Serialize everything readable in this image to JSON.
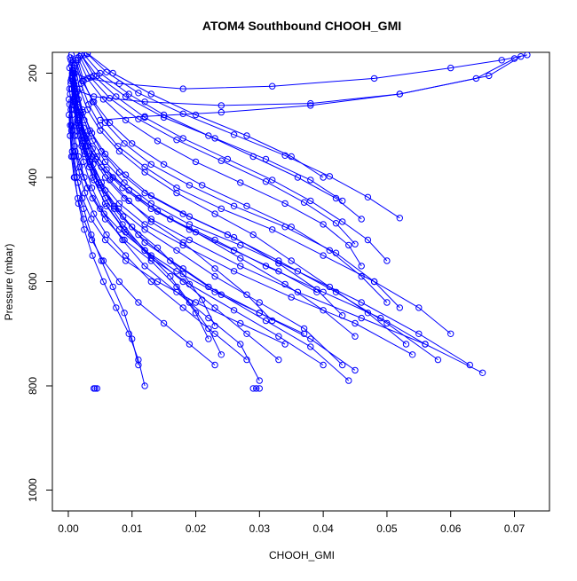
{
  "chart_data": {
    "type": "line",
    "title": "ATOM4 Southbound CHOOH_GMI",
    "xlabel": "CHOOH_GMI",
    "ylabel": "Pressure (mbar)",
    "xlim": [
      -0.0025,
      0.0755
    ],
    "ylim": [
      1040,
      160
    ],
    "y_reversed": true,
    "x_ticks": [
      0.0,
      0.01,
      0.02,
      0.03,
      0.04,
      0.05,
      0.06,
      0.07
    ],
    "x_tick_labels": [
      "0.00",
      "0.01",
      "0.02",
      "0.03",
      "0.04",
      "0.05",
      "0.06",
      "0.07"
    ],
    "y_ticks": [
      200,
      400,
      600,
      800,
      1000
    ],
    "y_tick_labels": [
      "200",
      "400",
      "600",
      "800",
      "1000"
    ],
    "grid": false,
    "legend": "none",
    "marker": "open-circle",
    "colors": {
      "series": "#0000ff",
      "axis": "#000000",
      "background": "#ffffff"
    },
    "series": [
      {
        "x": [
          0.0005,
          0.0008,
          0.0012,
          0.0018,
          0.0027,
          0.004,
          0.0058,
          0.0085,
          0.012,
          0.016,
          0.019,
          0.022,
          0.024
        ],
        "y": [
          165,
          200,
          240,
          290,
          340,
          390,
          440,
          490,
          540,
          590,
          640,
          690,
          740
        ]
      },
      {
        "x": [
          0.0003,
          0.0006,
          0.001,
          0.0016,
          0.0025,
          0.0038,
          0.0058,
          0.0088,
          0.013,
          0.018,
          0.023,
          0.028,
          0.033
        ],
        "y": [
          170,
          210,
          250,
          300,
          350,
          400,
          450,
          500,
          550,
          600,
          650,
          700,
          750
        ]
      },
      {
        "x": [
          0.0004,
          0.0007,
          0.0011,
          0.0017,
          0.0026,
          0.004,
          0.006,
          0.009,
          0.013,
          0.019,
          0.026,
          0.033,
          0.04
        ],
        "y": [
          175,
          215,
          255,
          305,
          355,
          405,
          455,
          505,
          555,
          605,
          655,
          705,
          760
        ]
      },
      {
        "x": [
          0.0006,
          0.0009,
          0.0014,
          0.0021,
          0.0032,
          0.0048,
          0.0072,
          0.011,
          0.016,
          0.022,
          0.03,
          0.038,
          0.045
        ],
        "y": [
          180,
          220,
          260,
          310,
          360,
          410,
          460,
          510,
          560,
          610,
          660,
          710,
          770
        ]
      },
      {
        "x": [
          0.0002,
          0.0005,
          0.0009,
          0.0015,
          0.0024,
          0.0037,
          0.0056,
          0.0085,
          0.012,
          0.017,
          0.022,
          0.027,
          0.03
        ],
        "y": [
          190,
          230,
          270,
          320,
          370,
          420,
          470,
          520,
          570,
          620,
          670,
          720,
          790
        ]
      },
      {
        "x": [
          0.0007,
          0.0011,
          0.0017,
          0.0026,
          0.0039,
          0.0058,
          0.0086,
          0.012,
          0.018,
          0.024,
          0.031,
          0.038,
          0.044
        ],
        "y": [
          195,
          235,
          275,
          325,
          375,
          425,
          475,
          525,
          575,
          625,
          675,
          725,
          790
        ]
      },
      {
        "x": [
          0.001,
          0.0018,
          0.003,
          0.005,
          0.008,
          0.012,
          0.017,
          0.023,
          0.029,
          0.035,
          0.041,
          0.047,
          0.053
        ],
        "y": [
          185,
          230,
          270,
          310,
          350,
          390,
          430,
          470,
          510,
          560,
          610,
          660,
          720
        ]
      },
      {
        "x": [
          0.0012,
          0.0022,
          0.004,
          0.0065,
          0.01,
          0.015,
          0.021,
          0.028,
          0.035,
          0.041,
          0.046,
          0.05
        ],
        "y": [
          175,
          215,
          255,
          295,
          335,
          375,
          415,
          455,
          495,
          540,
          590,
          640
        ]
      },
      {
        "x": [
          0.0015,
          0.003,
          0.0055,
          0.009,
          0.014,
          0.02,
          0.027,
          0.034,
          0.04,
          0.044,
          0.046
        ],
        "y": [
          170,
          210,
          250,
          290,
          330,
          370,
          410,
          450,
          490,
          530,
          570
        ]
      },
      {
        "x": [
          0.002,
          0.004,
          0.0075,
          0.012,
          0.018,
          0.025,
          0.032,
          0.038,
          0.043,
          0.047,
          0.05
        ],
        "y": [
          165,
          205,
          245,
          285,
          325,
          365,
          405,
          445,
          485,
          520,
          560
        ]
      },
      {
        "x": [
          0.0018,
          0.0035,
          0.0065,
          0.011,
          0.017,
          0.024,
          0.031,
          0.037,
          0.042,
          0.045
        ],
        "y": [
          168,
          208,
          248,
          288,
          328,
          368,
          408,
          448,
          488,
          528
        ]
      },
      {
        "x": [
          0.0025,
          0.005,
          0.0095,
          0.015,
          0.022,
          0.029,
          0.036,
          0.042,
          0.046
        ],
        "y": [
          165,
          200,
          240,
          280,
          320,
          360,
          400,
          440,
          480
        ]
      },
      {
        "x": [
          0.003,
          0.006,
          0.011,
          0.018,
          0.026,
          0.034,
          0.041,
          0.047,
          0.052
        ],
        "y": [
          163,
          198,
          238,
          278,
          318,
          358,
          398,
          438,
          478
        ]
      },
      {
        "x": [
          0.0008,
          0.0012,
          0.0018,
          0.0028,
          0.0045,
          0.007,
          0.011,
          0.016,
          0.023,
          0.031,
          0.04,
          0.049,
          0.056
        ],
        "y": [
          200,
          240,
          280,
          320,
          360,
          400,
          440,
          480,
          520,
          570,
          620,
          670,
          720
        ]
      },
      {
        "x": [
          0.0005,
          0.0009,
          0.0014,
          0.0022,
          0.0034,
          0.0052,
          0.008,
          0.012,
          0.018,
          0.026,
          0.035,
          0.045,
          0.054
        ],
        "y": [
          210,
          250,
          290,
          330,
          370,
          410,
          450,
          490,
          530,
          580,
          630,
          680,
          740
        ]
      },
      {
        "x": [
          0.0009,
          0.0014,
          0.0022,
          0.0034,
          0.0052,
          0.008,
          0.012,
          0.018,
          0.025,
          0.033,
          0.042,
          0.05,
          0.058
        ],
        "y": [
          190,
          230,
          270,
          310,
          350,
          390,
          430,
          470,
          510,
          560,
          620,
          680,
          750
        ]
      },
      {
        "x": [
          0.0004,
          0.0008,
          0.0013,
          0.0021,
          0.0033,
          0.0051,
          0.0079,
          0.012,
          0.017,
          0.023,
          0.03,
          0.037,
          0.043
        ],
        "y": [
          220,
          260,
          300,
          340,
          380,
          420,
          460,
          500,
          540,
          590,
          640,
          690,
          760
        ]
      },
      {
        "x": [
          0.0012,
          0.002,
          0.0032,
          0.005,
          0.0078,
          0.012,
          0.017,
          0.024,
          0.032,
          0.04,
          0.048,
          0.055,
          0.06
        ],
        "y": [
          180,
          220,
          260,
          300,
          340,
          380,
          420,
          460,
          500,
          550,
          600,
          650,
          700
        ]
      },
      {
        "x": [
          0.0006,
          0.001,
          0.0016,
          0.0025,
          0.0038,
          0.0058,
          0.0088,
          0.013,
          0.019,
          0.027,
          0.036,
          0.046,
          0.056,
          0.065
        ],
        "y": [
          200,
          240,
          280,
          320,
          360,
          400,
          440,
          480,
          520,
          570,
          620,
          670,
          720,
          775
        ]
      },
      {
        "x": [
          0.001,
          0.0016,
          0.0025,
          0.0038,
          0.0058,
          0.0088,
          0.013,
          0.019,
          0.027,
          0.036,
          0.046,
          0.055,
          0.063
        ],
        "y": [
          210,
          250,
          290,
          330,
          370,
          410,
          450,
          490,
          530,
          580,
          640,
          700,
          760
        ]
      },
      {
        "x": [
          0.0015,
          0.0024,
          0.0038,
          0.0058,
          0.0088,
          0.013,
          0.019,
          0.026,
          0.034,
          0.042,
          0.048,
          0.052
        ],
        "y": [
          175,
          215,
          255,
          295,
          335,
          375,
          415,
          455,
          495,
          545,
          600,
          650
        ]
      },
      {
        "x": [
          0.0002,
          0.0004,
          0.0007,
          0.0011,
          0.0017,
          0.0026,
          0.004,
          0.006,
          0.009,
          0.013,
          0.018,
          0.023,
          0.028
        ],
        "y": [
          230,
          270,
          310,
          350,
          390,
          430,
          470,
          510,
          550,
          600,
          650,
          700,
          750
        ]
      },
      {
        "x": [
          0.0003,
          0.0006,
          0.001,
          0.0016,
          0.0025,
          0.0038,
          0.0058,
          0.0088,
          0.013,
          0.017,
          0.02,
          0.022
        ],
        "y": [
          240,
          280,
          320,
          360,
          400,
          440,
          480,
          520,
          560,
          610,
          660,
          710
        ]
      },
      {
        "x": [
          0.0005,
          0.0009,
          0.0015,
          0.0024,
          0.0038,
          0.006,
          0.0095,
          0.014,
          0.02,
          0.027,
          0.034,
          0.04,
          0.045
        ],
        "y": [
          185,
          225,
          265,
          305,
          345,
          385,
          425,
          465,
          505,
          555,
          605,
          655,
          705
        ]
      },
      {
        "x": [
          0.0008,
          0.0014,
          0.0023,
          0.0037,
          0.0058,
          0.009,
          0.013,
          0.019,
          0.026,
          0.033,
          0.039,
          0.043
        ],
        "y": [
          195,
          235,
          275,
          315,
          355,
          395,
          435,
          475,
          515,
          565,
          615,
          665
        ]
      },
      {
        "x": [
          0.0001,
          0.0003,
          0.0006,
          0.001,
          0.0016,
          0.0025,
          0.0038,
          0.0055,
          0.0075,
          0.0095,
          0.011,
          0.012
        ],
        "y": [
          250,
          300,
          350,
          400,
          450,
          500,
          550,
          600,
          650,
          700,
          750,
          800
        ]
      },
      {
        "x": [
          0.0002,
          0.0005,
          0.0009,
          0.0015,
          0.0024,
          0.0036,
          0.0052,
          0.007,
          0.0088,
          0.01,
          0.011
        ],
        "y": [
          260,
          310,
          360,
          410,
          460,
          510,
          560,
          610,
          660,
          710,
          760
        ]
      },
      {
        "x": [
          0.0004,
          0.0008,
          0.0014,
          0.0022,
          0.0034,
          0.005,
          0.0072,
          0.01,
          0.014,
          0.018,
          0.021,
          0.023
        ],
        "y": [
          215,
          255,
          295,
          335,
          375,
          415,
          455,
          495,
          535,
          585,
          635,
          685
        ]
      },
      {
        "x": [
          0.0006,
          0.0011,
          0.0018,
          0.0028,
          0.0043,
          0.0065,
          0.0095,
          0.013,
          0.018,
          0.023,
          0.028,
          0.032
        ],
        "y": [
          205,
          245,
          285,
          325,
          365,
          405,
          445,
          485,
          525,
          575,
          625,
          675
        ]
      },
      {
        "x": [
          0.0001,
          0.0003,
          0.0005,
          0.0009,
          0.0015,
          0.0024,
          0.0037,
          0.0055,
          0.008,
          0.011,
          0.015,
          0.019,
          0.023
        ],
        "y": [
          280,
          320,
          360,
          400,
          440,
          480,
          520,
          560,
          600,
          640,
          680,
          720,
          760
        ]
      },
      {
        "x": [
          0.002,
          0.0045,
          0.009,
          0.015,
          0.023,
          0.031,
          0.038,
          0.043
        ],
        "y": [
          165,
          205,
          245,
          285,
          325,
          365,
          405,
          445
        ]
      },
      {
        "x": [
          0.003,
          0.007,
          0.013,
          0.02,
          0.028,
          0.035,
          0.04
        ],
        "y": [
          162,
          200,
          240,
          280,
          320,
          360,
          400
        ]
      },
      {
        "x": [
          0.001,
          0.003,
          0.008,
          0.018,
          0.032,
          0.048,
          0.06,
          0.068,
          0.072
        ],
        "y": [
          200,
          210,
          220,
          230,
          225,
          210,
          190,
          175,
          165
        ]
      },
      {
        "x": [
          0.0006,
          0.004,
          0.012,
          0.024,
          0.038,
          0.052,
          0.064,
          0.07
        ],
        "y": [
          230,
          245,
          255,
          262,
          258,
          240,
          210,
          172
        ]
      },
      {
        "x": [
          0.005,
          0.012,
          0.024,
          0.038,
          0.052,
          0.066,
          0.071
        ],
        "y": [
          290,
          283,
          275,
          262,
          240,
          205,
          168
        ]
      },
      {
        "x": [
          0.004,
          0.0042,
          0.0045
        ],
        "y": [
          805,
          805,
          805
        ]
      },
      {
        "x": [
          0.029,
          0.0295,
          0.03
        ],
        "y": [
          805,
          805,
          805
        ]
      },
      {
        "x": [
          0.0005,
          0.001,
          0.0018,
          0.003,
          0.005,
          0.008,
          0.012,
          0.017,
          0.023,
          0.03,
          0.037
        ],
        "y": [
          300,
          340,
          380,
          420,
          460,
          500,
          540,
          580,
          620,
          660,
          700
        ]
      },
      {
        "x": [
          0.0003,
          0.0007,
          0.0013,
          0.0022,
          0.0036,
          0.0058,
          0.009,
          0.014,
          0.02,
          0.027,
          0.034
        ],
        "y": [
          320,
          360,
          400,
          440,
          480,
          520,
          560,
          600,
          640,
          680,
          720
        ]
      },
      {
        "x": [
          0.0008,
          0.0016,
          0.003,
          0.0052,
          0.0085,
          0.013,
          0.019,
          0.026,
          0.033,
          0.039
        ],
        "y": [
          260,
          300,
          340,
          380,
          420,
          460,
          500,
          540,
          580,
          620
        ]
      }
    ]
  }
}
